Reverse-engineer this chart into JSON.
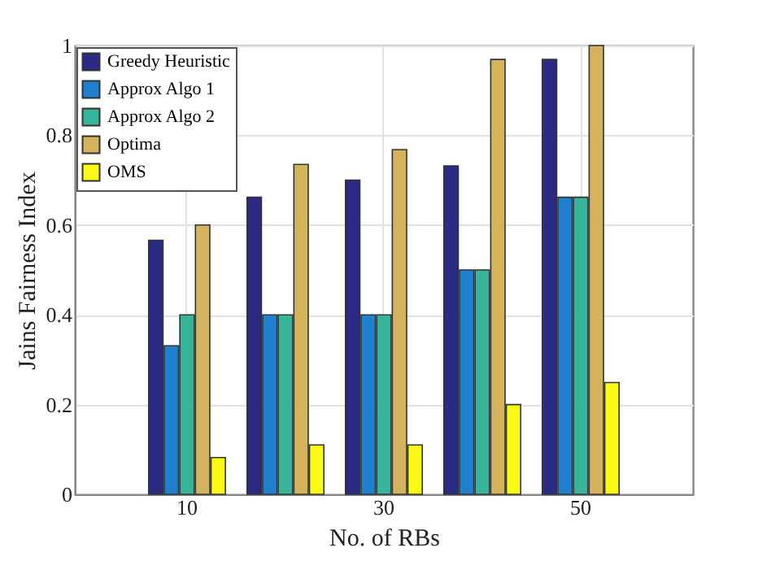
{
  "chart_data": {
    "type": "bar",
    "xlabel": "No. of RBs",
    "ylabel": "Jains Fairness Index",
    "categories": [
      "10",
      null,
      "30",
      null,
      "50"
    ],
    "series": [
      {
        "name": "Greedy Heuristic",
        "color": "#2b2a85",
        "values": [
          0.566,
          0.662,
          0.7,
          0.732,
          0.969
        ]
      },
      {
        "name": "Approx Algo 1",
        "color": "#1f80d0",
        "values": [
          0.331,
          0.4,
          0.4,
          0.5,
          0.662
        ]
      },
      {
        "name": "Approx Algo 2",
        "color": "#38b49a",
        "values": [
          0.4,
          0.4,
          0.4,
          0.5,
          0.662
        ]
      },
      {
        "name": "Optima",
        "color": "#d4b35c",
        "values": [
          0.6,
          0.735,
          0.768,
          0.969,
          1.0
        ]
      },
      {
        "name": "OMS",
        "color": "#fafa14",
        "values": [
          0.082,
          0.11,
          0.11,
          0.2,
          0.249
        ]
      }
    ],
    "ylim": [
      0,
      1
    ],
    "yticks": [
      {
        "value": 0,
        "label": "0"
      },
      0.2,
      0.4,
      0.6,
      0.8,
      {
        "value": 1,
        "label": "1"
      }
    ],
    "grid": true,
    "legend": "top left"
  }
}
